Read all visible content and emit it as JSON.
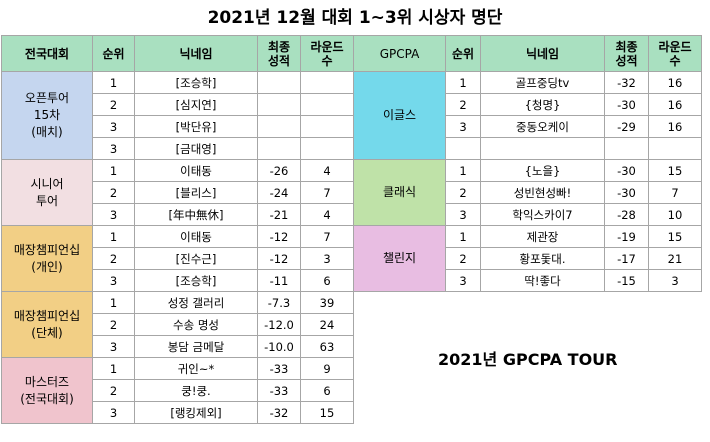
{
  "title": "2021년 12월 대회 1~3위 시상자 명단",
  "headers": {
    "left": [
      "전국대회",
      "순위",
      "닉네임",
      "최종\n성적",
      "라운드\n수"
    ],
    "right": [
      "GPCPA",
      "순위",
      "닉네임",
      "최종\n성적",
      "라운드\n수"
    ]
  },
  "left_groups": [
    {
      "name": "오픈투어\n15차\n(매치)",
      "rows": [
        {
          "rank": "1",
          "nick": "[조승학]",
          "score": "",
          "rounds": ""
        },
        {
          "rank": "2",
          "nick": "[심지연]",
          "score": "",
          "rounds": ""
        },
        {
          "rank": "3",
          "nick": "[박단유]",
          "score": "",
          "rounds": ""
        },
        {
          "rank": "3",
          "nick": "[금대영]",
          "score": "",
          "rounds": ""
        }
      ]
    },
    {
      "name": "시니어\n투어",
      "rows": [
        {
          "rank": "1",
          "nick": "이태동",
          "score": "-26",
          "rounds": "4"
        },
        {
          "rank": "2",
          "nick": "[블리스]",
          "score": "-24",
          "rounds": "7"
        },
        {
          "rank": "3",
          "nick": "[年中無休]",
          "score": "-21",
          "rounds": "4"
        }
      ]
    },
    {
      "name": "매장챔피언십\n(개인)",
      "rows": [
        {
          "rank": "1",
          "nick": "이태동",
          "score": "-12",
          "rounds": "7"
        },
        {
          "rank": "2",
          "nick": "[진수근]",
          "score": "-12",
          "rounds": "3"
        },
        {
          "rank": "3",
          "nick": "[조승학]",
          "score": "-11",
          "rounds": "6"
        }
      ]
    },
    {
      "name": "매장챔피언십\n(단체)",
      "rows": [
        {
          "rank": "1",
          "nick": "성정 갤러리",
          "score": "-7.3",
          "rounds": "39"
        },
        {
          "rank": "2",
          "nick": "수송 명성",
          "score": "-12.0",
          "rounds": "24"
        },
        {
          "rank": "3",
          "nick": "봉담 금메달",
          "score": "-10.0",
          "rounds": "63"
        }
      ]
    },
    {
      "name": "마스터즈\n(전국대회)",
      "rows": [
        {
          "rank": "1",
          "nick": "귀인~*",
          "score": "-33",
          "rounds": "9"
        },
        {
          "rank": "2",
          "nick": "쿵!쿵.",
          "score": "-33",
          "rounds": "6"
        },
        {
          "rank": "3",
          "nick": "[랭킹제외]",
          "score": "-32",
          "rounds": "15"
        }
      ]
    }
  ],
  "right_groups": [
    {
      "name": "이글스",
      "rows": [
        {
          "rank": "1",
          "nick": "골프중딩tv",
          "score": "-32",
          "rounds": "16"
        },
        {
          "rank": "2",
          "nick": "{청명}",
          "score": "-30",
          "rounds": "16"
        },
        {
          "rank": "3",
          "nick": "중동오케이",
          "score": "-29",
          "rounds": "16"
        },
        {
          "rank": "",
          "nick": "",
          "score": "",
          "rounds": ""
        }
      ]
    },
    {
      "name": "클래식",
      "rows": [
        {
          "rank": "1",
          "nick": "{노을}",
          "score": "-30",
          "rounds": "15"
        },
        {
          "rank": "2",
          "nick": "성빈현성빠!",
          "score": "-30",
          "rounds": "7"
        },
        {
          "rank": "3",
          "nick": "학익스카이7",
          "score": "-28",
          "rounds": "10"
        }
      ]
    },
    {
      "name": "챌린지",
      "rows": [
        {
          "rank": "1",
          "nick": "제관장",
          "score": "-19",
          "rounds": "15"
        },
        {
          "rank": "2",
          "nick": "황포돛대.",
          "score": "-17",
          "rounds": "21"
        },
        {
          "rank": "3",
          "nick": "딱!좋다",
          "score": "-15",
          "rounds": "3"
        }
      ]
    }
  ],
  "tour_label": "2021년 GPCPA TOUR"
}
